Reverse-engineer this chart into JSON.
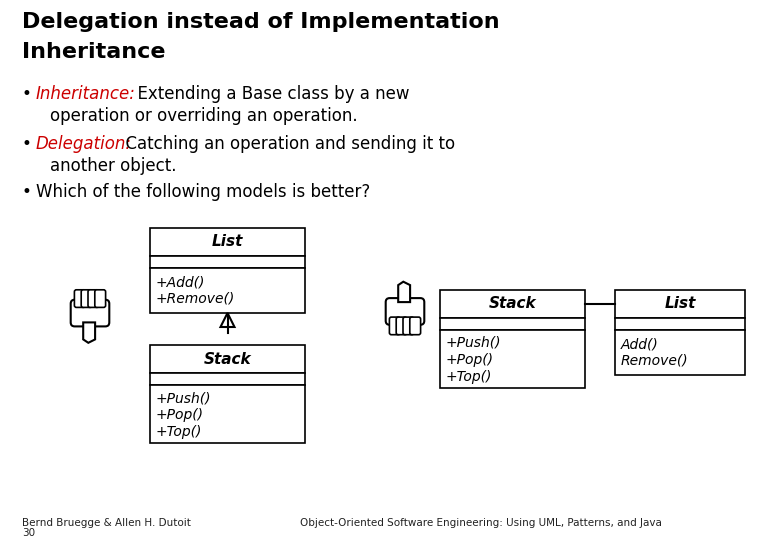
{
  "title_line1": "Delegation instead of Implementation",
  "title_line2": "Inheritance",
  "bullet1_red": "Inheritance:",
  "bullet1_black": "  Extending a Base class by a new",
  "bullet1_cont": "  operation or overriding an operation.",
  "bullet2_red": "Delegation:",
  "bullet2_black": "  Catching an operation and sending it to",
  "bullet2_cont": "  another object.",
  "bullet3": "Which of the following models is better?",
  "bg_color": "#ffffff",
  "title_color": "#000000",
  "red_color": "#cc0000",
  "text_color": "#000000",
  "footer_left": "Bernd Bruegge & Allen H. Dutoit\n30",
  "footer_right": "Object-Oriented Software Engineering: Using UML, Patterns, and Java"
}
